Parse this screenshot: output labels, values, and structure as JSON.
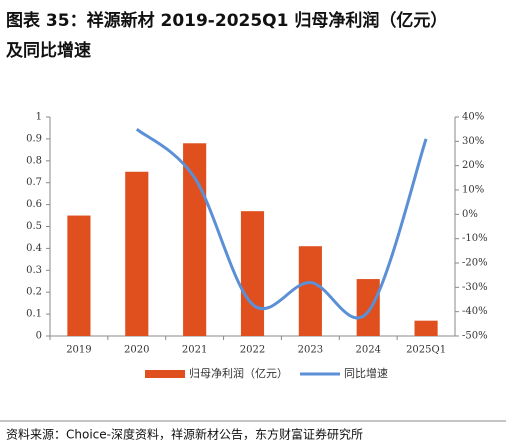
{
  "chart_data": {
    "type": "bar-line",
    "title": "图表 35：祥源新材 2019-2025Q1 归母净利润（亿元）",
    "subtitle": "及同比增速",
    "source": "资料来源：Choice-深度资料，祥源新材公告，东方财富证券研究所",
    "categories": [
      "2019",
      "2020",
      "2021",
      "2022",
      "2023",
      "2024",
      "2025Q1"
    ],
    "series": [
      {
        "name": "归母净利润（亿元）",
        "type": "bar",
        "color": "#e0501f",
        "values": [
          0.55,
          0.75,
          0.88,
          0.57,
          0.41,
          0.26,
          0.07
        ]
      },
      {
        "name": "同比增速",
        "type": "line",
        "axis": "y2",
        "color": "#5b8fd6",
        "values": [
          null,
          35,
          15,
          -37,
          -28,
          -40,
          31
        ]
      }
    ],
    "ylim": [
      0,
      1
    ],
    "yticks": [
      0,
      0.1,
      0.2,
      0.3,
      0.4,
      0.5,
      0.6,
      0.7,
      0.8,
      0.9,
      1
    ],
    "y2lim": [
      -50,
      40
    ],
    "y2ticks": [
      {
        "value": -50,
        "label": "-50%"
      },
      {
        "value": -40,
        "label": "-40%"
      },
      {
        "value": -30,
        "label": "-30%"
      },
      {
        "value": -20,
        "label": "-20%"
      },
      {
        "value": -10,
        "label": "-10%"
      },
      {
        "value": 0,
        "label": "0%"
      },
      {
        "value": 10,
        "label": "10%"
      },
      {
        "value": 20,
        "label": "20%"
      },
      {
        "value": 30,
        "label": "30%"
      },
      {
        "value": 40,
        "label": "40%"
      }
    ],
    "legend": "bottom",
    "grid": false
  }
}
